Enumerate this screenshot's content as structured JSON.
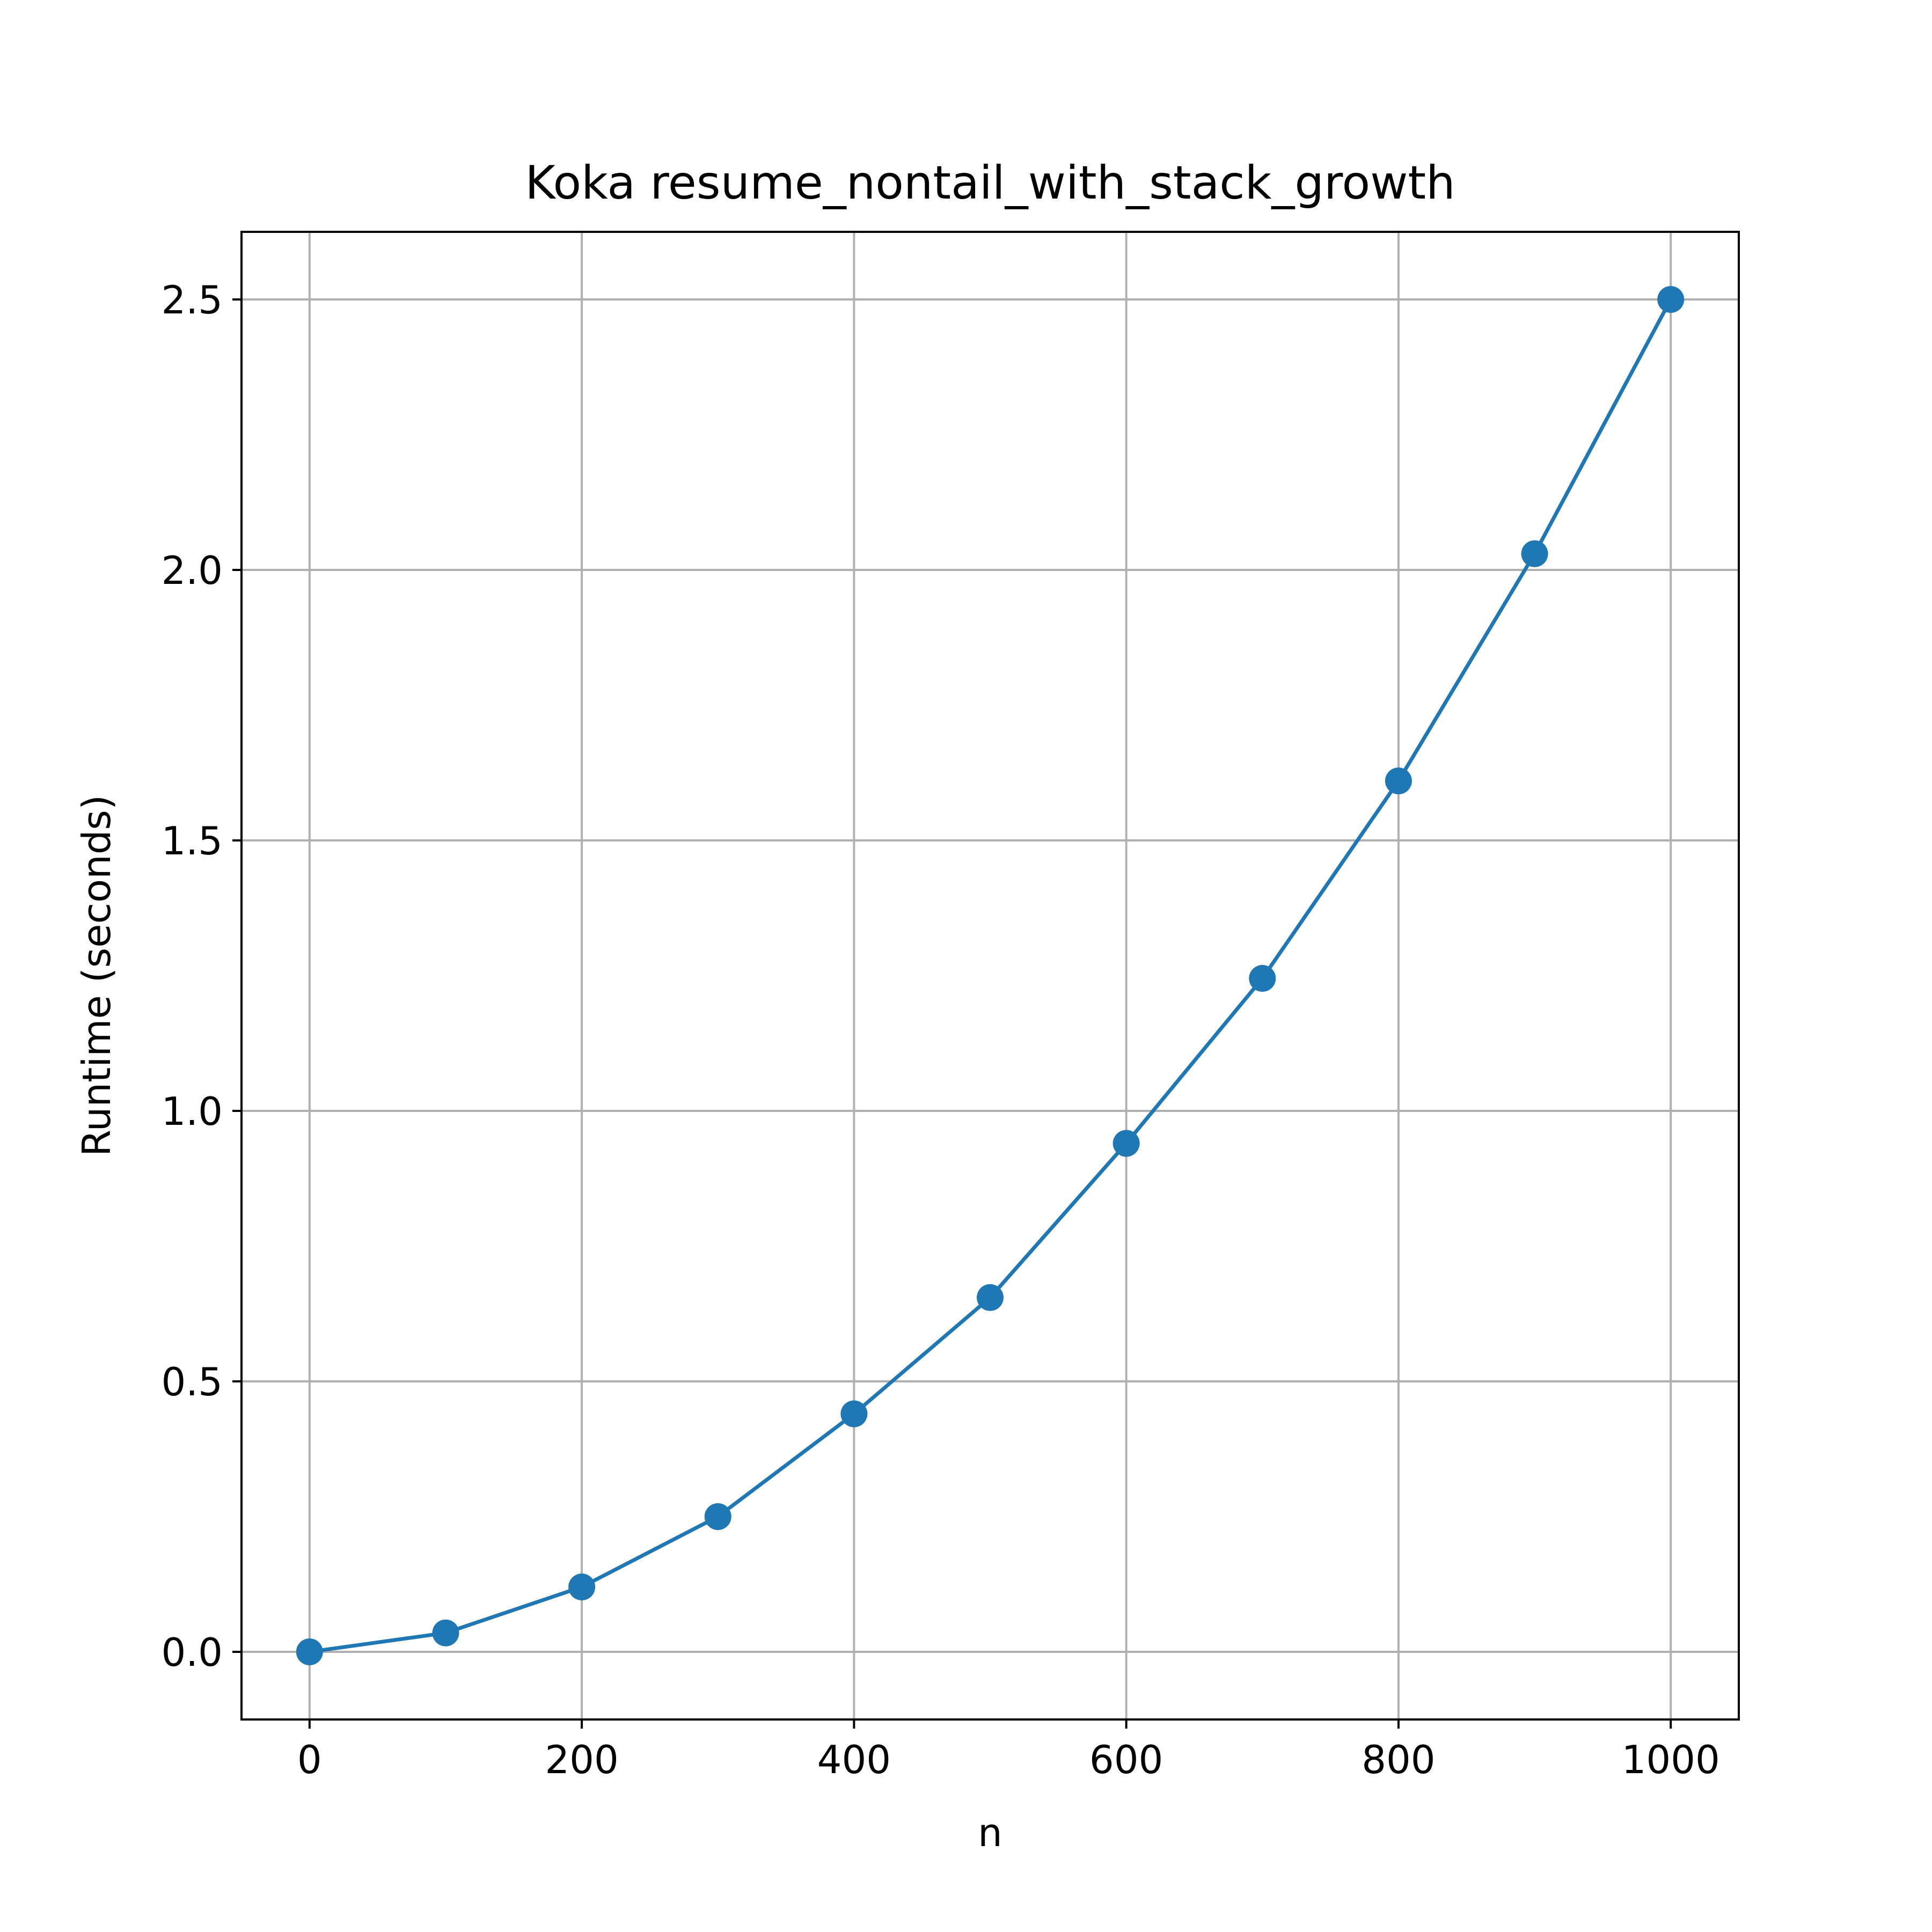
{
  "chart_data": {
    "type": "line",
    "title": "Koka resume_nontail_with_stack_growth",
    "xlabel": "n",
    "ylabel": "Runtime (seconds)",
    "x": [
      0,
      100,
      200,
      300,
      400,
      500,
      600,
      700,
      800,
      900,
      1000
    ],
    "series": [
      {
        "values": [
          0.0,
          0.035,
          0.12,
          0.25,
          0.44,
          0.655,
          0.94,
          1.245,
          1.61,
          2.03,
          2.5
        ],
        "color": "#1f77b4",
        "marker": "circle"
      }
    ],
    "xlim": [
      -50,
      1050
    ],
    "ylim": [
      -0.125,
      2.625
    ],
    "xticks": [
      0,
      200,
      400,
      600,
      800,
      1000
    ],
    "xtick_labels": [
      "0",
      "200",
      "400",
      "600",
      "800",
      "1000"
    ],
    "yticks": [
      0.0,
      0.5,
      1.0,
      1.5,
      2.0,
      2.5
    ],
    "ytick_labels": [
      "0.0",
      "0.5",
      "1.0",
      "1.5",
      "2.0",
      "2.5"
    ],
    "grid": true,
    "grid_color": "#b0b0b0"
  }
}
